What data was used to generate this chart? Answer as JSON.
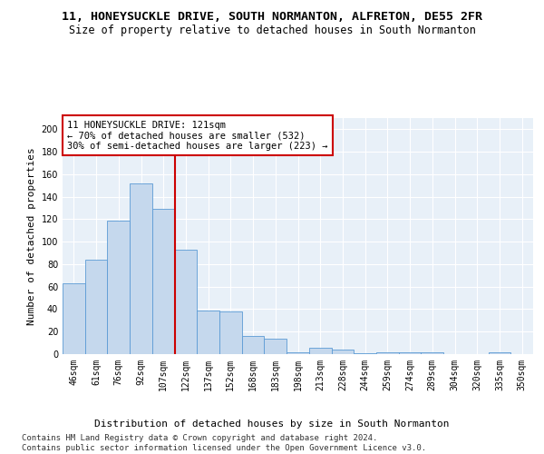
{
  "title": "11, HONEYSUCKLE DRIVE, SOUTH NORMANTON, ALFRETON, DE55 2FR",
  "subtitle": "Size of property relative to detached houses in South Normanton",
  "xlabel": "Distribution of detached houses by size in South Normanton",
  "ylabel": "Number of detached properties",
  "bar_color": "#c5d8ed",
  "bar_edge_color": "#5b9bd5",
  "vline_color": "#cc0000",
  "annotation_text": "11 HONEYSUCKLE DRIVE: 121sqm\n← 70% of detached houses are smaller (532)\n30% of semi-detached houses are larger (223) →",
  "annotation_box_color": "#ffffff",
  "annotation_box_edge": "#cc0000",
  "categories": [
    "46sqm",
    "61sqm",
    "76sqm",
    "92sqm",
    "107sqm",
    "122sqm",
    "137sqm",
    "152sqm",
    "168sqm",
    "183sqm",
    "198sqm",
    "213sqm",
    "228sqm",
    "244sqm",
    "259sqm",
    "274sqm",
    "289sqm",
    "304sqm",
    "320sqm",
    "335sqm",
    "350sqm"
  ],
  "values": [
    63,
    84,
    119,
    152,
    129,
    93,
    39,
    38,
    16,
    14,
    2,
    6,
    4,
    1,
    2,
    2,
    2,
    0,
    0,
    2,
    0
  ],
  "ylim": [
    0,
    210
  ],
  "yticks": [
    0,
    20,
    40,
    60,
    80,
    100,
    120,
    140,
    160,
    180,
    200
  ],
  "background_color": "#e8f0f8",
  "grid_color": "#ffffff",
  "footer": "Contains HM Land Registry data © Crown copyright and database right 2024.\nContains public sector information licensed under the Open Government Licence v3.0.",
  "title_fontsize": 9.5,
  "subtitle_fontsize": 8.5,
  "xlabel_fontsize": 8,
  "ylabel_fontsize": 8,
  "tick_fontsize": 7,
  "footer_fontsize": 6.5,
  "annot_fontsize": 7.5
}
